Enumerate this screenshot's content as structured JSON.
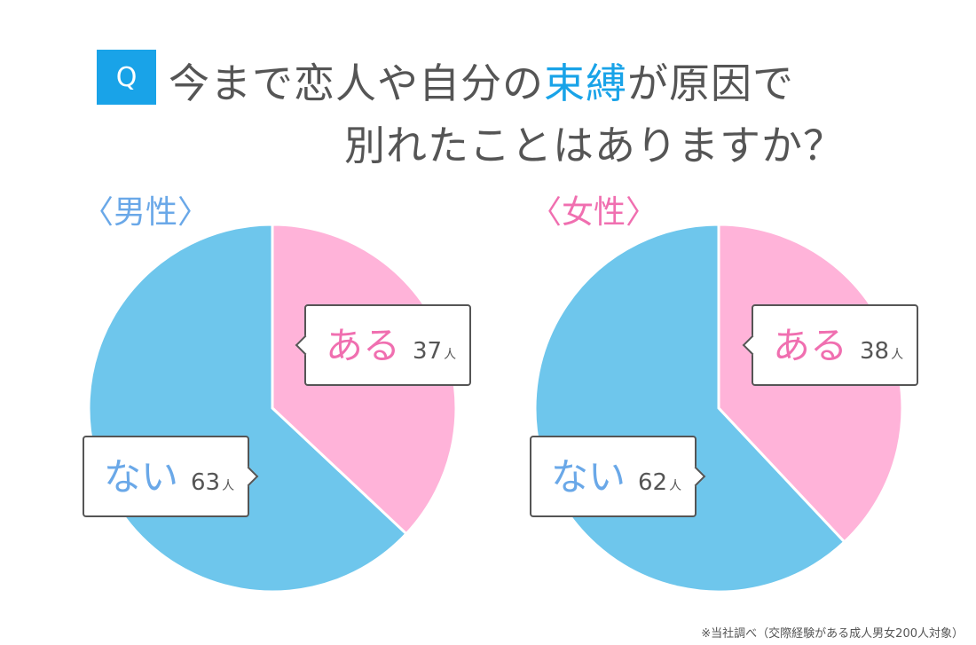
{
  "header": {
    "badge": "Q",
    "line1_pre": "今まで恋人や自分の",
    "line1_highlight": "束縛",
    "line1_post": "が原因で",
    "line2": "別れたことはありますか？"
  },
  "colors": {
    "aru": "#ffb3d9",
    "nai": "#6ec6ec",
    "accent_blue": "#19a3e8",
    "label_blue": "#6aa8e8",
    "label_pink": "#f06fb0"
  },
  "footnote": "※当社調べ（交際経験がある成人男女200人対象）",
  "chart_data": [
    {
      "type": "pie",
      "title": "〈男性〉",
      "categories": [
        "ある",
        "ない"
      ],
      "values": [
        37,
        63
      ],
      "value_labels": [
        "37",
        "63"
      ],
      "unit": "人"
    },
    {
      "type": "pie",
      "title": "〈女性〉",
      "categories": [
        "ある",
        "ない"
      ],
      "values": [
        38,
        62
      ],
      "value_labels": [
        "38",
        "62"
      ],
      "unit": "人"
    }
  ]
}
